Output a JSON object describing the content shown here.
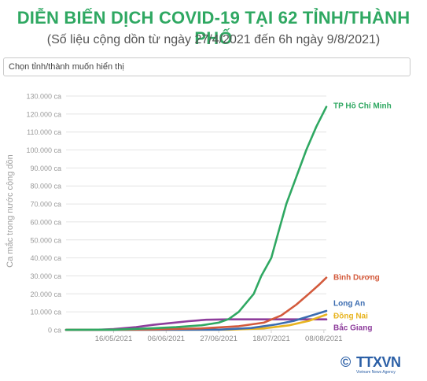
{
  "header": {
    "title": "DIỄN BIẾN DỊCH COVID-19 TẠI 62 TỈNH/THÀNH PHỐ",
    "subtitle": "(Số liệu cộng dồn từ ngày 27/4/2021 đến 6h ngày 9/8/2021)"
  },
  "selector": {
    "placeholder": "Chọn tỉnh/thành muốn hiển thị"
  },
  "logo": {
    "symbol": "©",
    "text": "TTXVN",
    "tagline": "Vietnam News Agency"
  },
  "chart_data": {
    "type": "line",
    "title": "DIỄN BIẾN DỊCH COVID-19 TẠI 62 TỈNH/THÀNH PHỐ",
    "subtitle": "(Số liệu cộng dồn từ ngày 27/4/2021 đến 6h ngày 9/8/2021)",
    "xlabel": "",
    "ylabel": "Ca mắc trong nước cộng dồn",
    "x_range": [
      "2021-04-27",
      "2021-08-09"
    ],
    "ylim": [
      0,
      130000
    ],
    "x_ticks": [
      "16/05/2021",
      "06/06/2021",
      "27/06/2021",
      "18/07/2021",
      "08/08/2021"
    ],
    "y_ticks": [
      "0 ca",
      "10.000 ca",
      "20.000 ca",
      "30.000 ca",
      "40.000 ca",
      "50.000 ca",
      "60.000 ca",
      "70.000 ca",
      "80.000 ca",
      "90.000 ca",
      "100.000 ca",
      "110.000 ca",
      "120.000 ca",
      "130.000 ca"
    ],
    "grid": true,
    "series": [
      {
        "name": "TP Hồ Chí Minh",
        "color": "#2fa862",
        "points": [
          [
            "2021-04-27",
            0
          ],
          [
            "2021-05-16",
            100
          ],
          [
            "2021-06-01",
            900
          ],
          [
            "2021-06-10",
            1500
          ],
          [
            "2021-06-20",
            2500
          ],
          [
            "2021-06-27",
            4000
          ],
          [
            "2021-07-01",
            6000
          ],
          [
            "2021-07-05",
            10000
          ],
          [
            "2021-07-08",
            15000
          ],
          [
            "2021-07-11",
            20000
          ],
          [
            "2021-07-14",
            30000
          ],
          [
            "2021-07-18",
            40000
          ],
          [
            "2021-07-21",
            55000
          ],
          [
            "2021-07-24",
            70000
          ],
          [
            "2021-07-28",
            85000
          ],
          [
            "2021-08-01",
            100000
          ],
          [
            "2021-08-05",
            113000
          ],
          [
            "2021-08-09",
            124000
          ]
        ]
      },
      {
        "name": "Bình Dương",
        "color": "#d35a3c",
        "points": [
          [
            "2021-04-27",
            0
          ],
          [
            "2021-06-01",
            200
          ],
          [
            "2021-06-20",
            800
          ],
          [
            "2021-07-05",
            2000
          ],
          [
            "2021-07-15",
            4000
          ],
          [
            "2021-07-22",
            8000
          ],
          [
            "2021-07-28",
            14000
          ],
          [
            "2021-08-02",
            20000
          ],
          [
            "2021-08-06",
            25000
          ],
          [
            "2021-08-09",
            29000
          ]
        ]
      },
      {
        "name": "Long An",
        "color": "#3b6cb0",
        "points": [
          [
            "2021-04-27",
            0
          ],
          [
            "2021-06-27",
            100
          ],
          [
            "2021-07-10",
            1000
          ],
          [
            "2021-07-20",
            3000
          ],
          [
            "2021-07-27",
            5000
          ],
          [
            "2021-08-02",
            7500
          ],
          [
            "2021-08-09",
            10500
          ]
        ]
      },
      {
        "name": "Đồng Nai",
        "color": "#e8b420",
        "points": [
          [
            "2021-04-27",
            0
          ],
          [
            "2021-07-01",
            100
          ],
          [
            "2021-07-15",
            800
          ],
          [
            "2021-07-25",
            2500
          ],
          [
            "2021-08-02",
            5000
          ],
          [
            "2021-08-09",
            8500
          ]
        ]
      },
      {
        "name": "Bắc Giang",
        "color": "#8e3d9c",
        "points": [
          [
            "2021-04-27",
            0
          ],
          [
            "2021-05-10",
            100
          ],
          [
            "2021-05-16",
            400
          ],
          [
            "2021-05-25",
            1500
          ],
          [
            "2021-06-01",
            2800
          ],
          [
            "2021-06-08",
            3800
          ],
          [
            "2021-06-15",
            4800
          ],
          [
            "2021-06-22",
            5600
          ],
          [
            "2021-07-01",
            5800
          ],
          [
            "2021-08-09",
            5800
          ]
        ]
      }
    ]
  }
}
